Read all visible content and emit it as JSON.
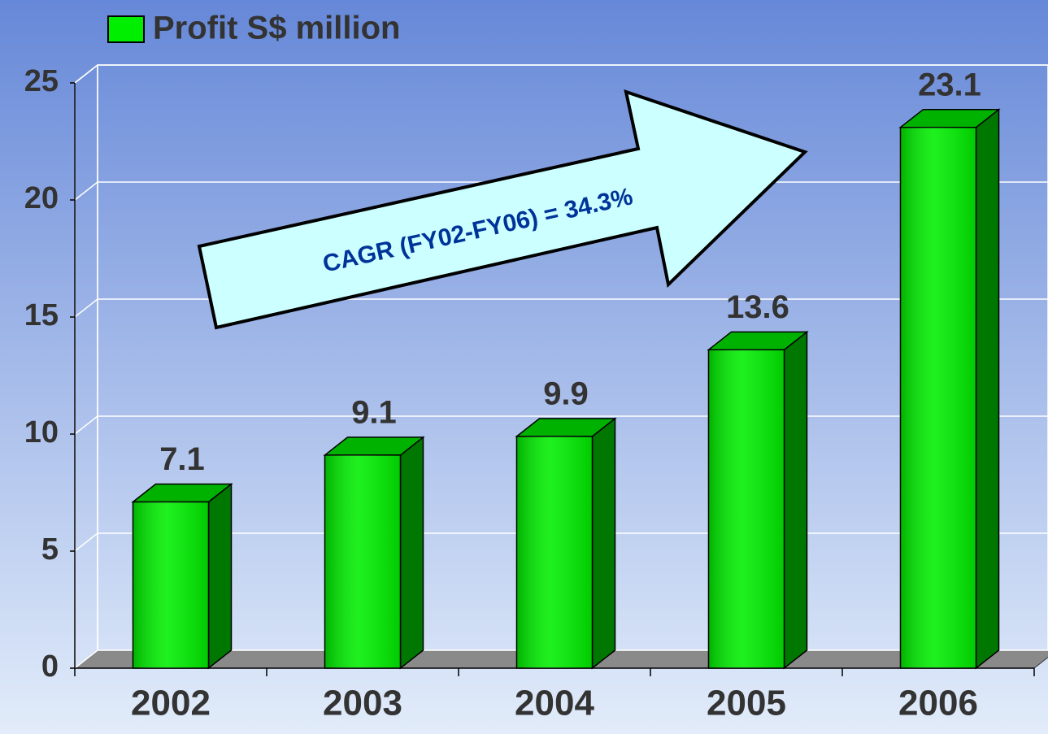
{
  "chart_data": {
    "type": "bar",
    "categories": [
      "2002",
      "2003",
      "2004",
      "2005",
      "2006"
    ],
    "series": [
      {
        "name": "Profit S$ million",
        "color": "#00ee00",
        "values": [
          7.1,
          9.1,
          9.9,
          13.6,
          23.1
        ]
      }
    ],
    "ylim": [
      0,
      25
    ],
    "yticks": [
      0,
      5,
      10,
      15,
      20,
      25
    ],
    "grid": true,
    "legend": "top-left",
    "annotation": "CAGR (FY02-FY06) = 34.3%"
  }
}
